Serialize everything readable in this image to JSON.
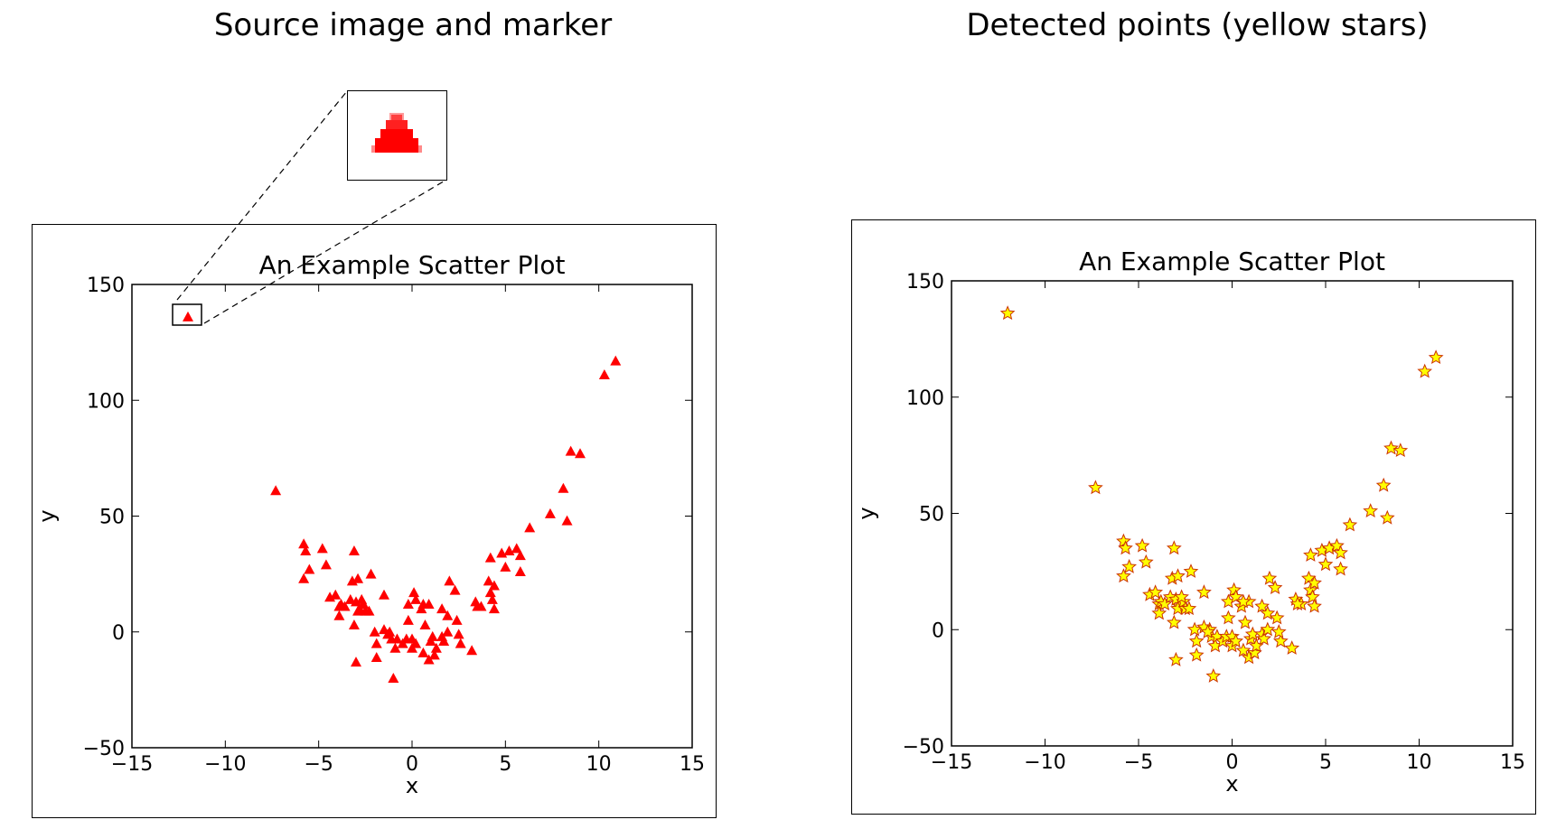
{
  "headings": {
    "left": "Source image and marker",
    "right": "Detected points (yellow stars)"
  },
  "colors": {
    "marker": "#ff0000",
    "star_fill": "#ffff00",
    "star_edge": "#cc3300",
    "axis": "#000000"
  },
  "icons": {
    "inset": "zoomed-triangle-marker-icon"
  },
  "chart_data": [
    {
      "type": "scatter",
      "title": "An Example Scatter Plot",
      "xlabel": "x",
      "ylabel": "y",
      "xlim": [
        -15,
        15
      ],
      "ylim": [
        -50,
        150
      ],
      "xticks": [
        -15,
        -10,
        -5,
        0,
        5,
        10,
        15
      ],
      "yticks": [
        -50,
        0,
        50,
        100,
        150
      ],
      "xticklabels": [
        "−15",
        "−10",
        "−5",
        "0",
        "5",
        "10",
        "15"
      ],
      "yticklabels": [
        "−50",
        "0",
        "50",
        "100",
        "150"
      ],
      "grid": false,
      "marker": "triangle",
      "series": [
        {
          "points": [
            [
              -12,
              136
            ],
            [
              -7.3,
              61
            ],
            [
              -5.8,
              38
            ],
            [
              -5.7,
              35
            ],
            [
              -5.8,
              23
            ],
            [
              -5.5,
              27
            ],
            [
              -4.8,
              36
            ],
            [
              -4.6,
              29
            ],
            [
              -4.4,
              15
            ],
            [
              -4.1,
              16
            ],
            [
              -3.9,
              11
            ],
            [
              -3.8,
              12
            ],
            [
              -3.9,
              7
            ],
            [
              -3.6,
              11
            ],
            [
              -3.3,
              14
            ],
            [
              -3.1,
              35
            ],
            [
              -3.2,
              22
            ],
            [
              -2.9,
              23
            ],
            [
              -3.0,
              13
            ],
            [
              -2.8,
              10
            ],
            [
              -2.9,
              9
            ],
            [
              -2.6,
              12
            ],
            [
              -2.5,
              9
            ],
            [
              -2.3,
              9
            ],
            [
              -2.7,
              14
            ],
            [
              -2.2,
              25
            ],
            [
              -3.1,
              3
            ],
            [
              -3.0,
              -13
            ],
            [
              -1.5,
              16
            ],
            [
              -2.0,
              0
            ],
            [
              -1.9,
              -5
            ],
            [
              -1.9,
              -11
            ],
            [
              -1.2,
              0
            ],
            [
              -1.5,
              1
            ],
            [
              -1.1,
              -3
            ],
            [
              -0.9,
              -7
            ],
            [
              -0.8,
              -3
            ],
            [
              -0.5,
              -5
            ],
            [
              -1.0,
              -20
            ],
            [
              -0.3,
              -3
            ],
            [
              -0.2,
              5
            ],
            [
              -0.2,
              12
            ],
            [
              0.1,
              17
            ],
            [
              0.2,
              14
            ],
            [
              0.0,
              -3
            ],
            [
              0.0,
              -7
            ],
            [
              0.2,
              -5
            ],
            [
              0.5,
              10
            ],
            [
              0.7,
              3
            ],
            [
              0.9,
              12
            ],
            [
              0.9,
              -12
            ],
            [
              0.6,
              -9
            ],
            [
              1.0,
              -4
            ],
            [
              1.1,
              -2
            ],
            [
              1.2,
              -10
            ],
            [
              1.3,
              -7
            ],
            [
              1.6,
              -2
            ],
            [
              1.7,
              -4
            ],
            [
              1.6,
              10
            ],
            [
              1.9,
              7
            ],
            [
              2.0,
              22
            ],
            [
              2.3,
              18
            ],
            [
              2.4,
              5
            ],
            [
              2.6,
              -5
            ],
            [
              1.9,
              0
            ],
            [
              3.2,
              -8
            ],
            [
              3.4,
              13
            ],
            [
              3.7,
              11
            ],
            [
              4.1,
              22
            ],
            [
              4.2,
              17
            ],
            [
              4.3,
              14
            ],
            [
              4.4,
              20
            ],
            [
              4.4,
              10
            ],
            [
              4.2,
              32
            ],
            [
              4.8,
              34
            ],
            [
              5.0,
              28
            ],
            [
              5.2,
              35
            ],
            [
              5.6,
              36
            ],
            [
              5.8,
              33
            ],
            [
              5.8,
              26
            ],
            [
              6.3,
              45
            ],
            [
              7.4,
              51
            ],
            [
              8.1,
              62
            ],
            [
              8.3,
              48
            ],
            [
              8.5,
              78
            ],
            [
              9.0,
              77
            ],
            [
              10.3,
              111
            ],
            [
              10.9,
              117
            ],
            [
              0.6,
              12
            ],
            [
              -1.3,
              -1
            ],
            [
              2.5,
              -1
            ],
            [
              3.5,
              11
            ]
          ]
        }
      ]
    },
    {
      "type": "scatter",
      "title": "An Example Scatter Plot",
      "xlabel": "x",
      "ylabel": "y",
      "xlim": [
        -15,
        15
      ],
      "ylim": [
        -50,
        150
      ],
      "xticks": [
        -15,
        -10,
        -5,
        0,
        5,
        10,
        15
      ],
      "yticks": [
        -50,
        0,
        50,
        100,
        150
      ],
      "xticklabels": [
        "−15",
        "−10",
        "−5",
        "0",
        "5",
        "10",
        "15"
      ],
      "yticklabels": [
        "−50",
        "0",
        "50",
        "100",
        "150"
      ],
      "grid": false,
      "marker": "star",
      "series": [
        {
          "points": [
            [
              -12,
              136
            ],
            [
              -7.3,
              61
            ],
            [
              -5.8,
              38
            ],
            [
              -5.7,
              35
            ],
            [
              -5.8,
              23
            ],
            [
              -5.5,
              27
            ],
            [
              -4.8,
              36
            ],
            [
              -4.6,
              29
            ],
            [
              -4.4,
              15
            ],
            [
              -4.1,
              16
            ],
            [
              -3.9,
              11
            ],
            [
              -3.8,
              12
            ],
            [
              -3.9,
              7
            ],
            [
              -3.6,
              11
            ],
            [
              -3.3,
              14
            ],
            [
              -3.1,
              35
            ],
            [
              -3.2,
              22
            ],
            [
              -2.9,
              23
            ],
            [
              -3.0,
              13
            ],
            [
              -2.8,
              10
            ],
            [
              -2.9,
              9
            ],
            [
              -2.6,
              12
            ],
            [
              -2.5,
              9
            ],
            [
              -2.3,
              9
            ],
            [
              -2.7,
              14
            ],
            [
              -2.2,
              25
            ],
            [
              -3.1,
              3
            ],
            [
              -3.0,
              -13
            ],
            [
              -1.5,
              16
            ],
            [
              -2.0,
              0
            ],
            [
              -1.9,
              -5
            ],
            [
              -1.9,
              -11
            ],
            [
              -1.2,
              0
            ],
            [
              -1.5,
              1
            ],
            [
              -1.1,
              -3
            ],
            [
              -0.9,
              -7
            ],
            [
              -0.8,
              -3
            ],
            [
              -0.5,
              -5
            ],
            [
              -1.0,
              -20
            ],
            [
              -0.3,
              -3
            ],
            [
              -0.2,
              5
            ],
            [
              -0.2,
              12
            ],
            [
              0.1,
              17
            ],
            [
              0.2,
              14
            ],
            [
              0.0,
              -3
            ],
            [
              0.0,
              -7
            ],
            [
              0.2,
              -5
            ],
            [
              0.5,
              10
            ],
            [
              0.7,
              3
            ],
            [
              0.9,
              12
            ],
            [
              0.9,
              -12
            ],
            [
              0.6,
              -9
            ],
            [
              1.0,
              -4
            ],
            [
              1.1,
              -2
            ],
            [
              1.2,
              -10
            ],
            [
              1.3,
              -7
            ],
            [
              1.6,
              -2
            ],
            [
              1.7,
              -4
            ],
            [
              1.6,
              10
            ],
            [
              1.9,
              7
            ],
            [
              2.0,
              22
            ],
            [
              2.3,
              18
            ],
            [
              2.4,
              5
            ],
            [
              2.6,
              -5
            ],
            [
              1.9,
              0
            ],
            [
              3.2,
              -8
            ],
            [
              3.4,
              13
            ],
            [
              3.7,
              11
            ],
            [
              4.1,
              22
            ],
            [
              4.2,
              17
            ],
            [
              4.3,
              14
            ],
            [
              4.4,
              20
            ],
            [
              4.4,
              10
            ],
            [
              4.2,
              32
            ],
            [
              4.8,
              34
            ],
            [
              5.0,
              28
            ],
            [
              5.2,
              35
            ],
            [
              5.6,
              36
            ],
            [
              5.8,
              33
            ],
            [
              5.8,
              26
            ],
            [
              6.3,
              45
            ],
            [
              7.4,
              51
            ],
            [
              8.1,
              62
            ],
            [
              8.3,
              48
            ],
            [
              8.5,
              78
            ],
            [
              9.0,
              77
            ],
            [
              10.3,
              111
            ],
            [
              10.9,
              117
            ],
            [
              0.6,
              12
            ],
            [
              -1.3,
              -1
            ],
            [
              2.5,
              -1
            ],
            [
              3.5,
              11
            ]
          ]
        }
      ]
    }
  ]
}
